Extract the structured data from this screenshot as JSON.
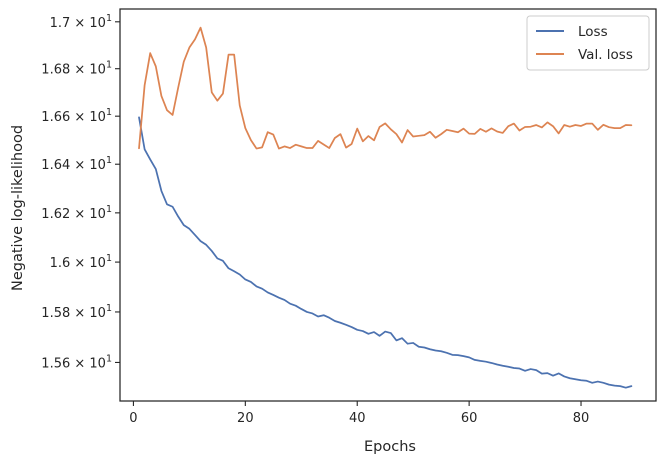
{
  "chart_data": {
    "type": "line",
    "xlabel": "Epochs",
    "ylabel": "Negative log-likelihood",
    "xlim": [
      -2.4,
      93.4
    ],
    "ylim": [
      15.449,
      17.055
    ],
    "yscale": "log",
    "grid": false,
    "legend_position": "top-right",
    "x_ticks": [
      {
        "value": 0,
        "label": "0"
      },
      {
        "value": 20,
        "label": "20"
      },
      {
        "value": 40,
        "label": "40"
      },
      {
        "value": 60,
        "label": "60"
      },
      {
        "value": 80,
        "label": "80"
      }
    ],
    "y_ticks": [
      {
        "value": 15.6,
        "mant": "1.56",
        "exp": "1"
      },
      {
        "value": 15.8,
        "mant": "1.58",
        "exp": "1"
      },
      {
        "value": 16.0,
        "mant": "1.6",
        "exp": "1"
      },
      {
        "value": 16.2,
        "mant": "1.62",
        "exp": "1"
      },
      {
        "value": 16.4,
        "mant": "1.64",
        "exp": "1"
      },
      {
        "value": 16.6,
        "mant": "1.66",
        "exp": "1"
      },
      {
        "value": 16.8,
        "mant": "1.68",
        "exp": "1"
      },
      {
        "value": 17.0,
        "mant": "1.7",
        "exp": "1"
      }
    ],
    "x": [
      1,
      2,
      3,
      4,
      5,
      6,
      7,
      8,
      9,
      10,
      11,
      12,
      13,
      14,
      15,
      16,
      17,
      18,
      19,
      20,
      21,
      22,
      23,
      24,
      25,
      26,
      27,
      28,
      29,
      30,
      31,
      32,
      33,
      34,
      35,
      36,
      37,
      38,
      39,
      40,
      41,
      42,
      43,
      44,
      45,
      46,
      47,
      48,
      49,
      50,
      51,
      52,
      53,
      54,
      55,
      56,
      57,
      58,
      59,
      60,
      61,
      62,
      63,
      64,
      65,
      66,
      67,
      68,
      69,
      70,
      71,
      72,
      73,
      74,
      75,
      76,
      77,
      78,
      79,
      80,
      81,
      82,
      83,
      84,
      85,
      86,
      87,
      88,
      89
    ],
    "series": [
      {
        "name": "Loss",
        "color": "#4c72b0",
        "values": [
          16.595,
          16.462,
          16.42,
          16.38,
          16.29,
          16.235,
          16.225,
          16.185,
          16.15,
          16.135,
          16.11,
          16.085,
          16.07,
          16.045,
          16.015,
          16.005,
          15.975,
          15.963,
          15.95,
          15.93,
          15.92,
          15.902,
          15.893,
          15.878,
          15.868,
          15.857,
          15.848,
          15.833,
          15.825,
          15.812,
          15.8,
          15.794,
          15.782,
          15.787,
          15.777,
          15.764,
          15.757,
          15.749,
          15.74,
          15.729,
          15.724,
          15.713,
          15.72,
          15.705,
          15.722,
          15.716,
          15.687,
          15.696,
          15.674,
          15.677,
          15.662,
          15.659,
          15.652,
          15.647,
          15.644,
          15.638,
          15.63,
          15.629,
          15.625,
          15.62,
          15.61,
          15.606,
          15.603,
          15.598,
          15.592,
          15.587,
          15.583,
          15.578,
          15.576,
          15.567,
          15.574,
          15.57,
          15.556,
          15.558,
          15.548,
          15.557,
          15.545,
          15.538,
          15.534,
          15.53,
          15.528,
          15.52,
          15.525,
          15.52,
          15.513,
          15.509,
          15.507,
          15.501,
          15.507
        ]
      },
      {
        "name": "Val. loss",
        "color": "#dd8452",
        "values": [
          16.466,
          16.73,
          16.866,
          16.81,
          16.685,
          16.625,
          16.605,
          16.72,
          16.83,
          16.89,
          16.925,
          16.975,
          16.89,
          16.7,
          16.665,
          16.695,
          16.86,
          16.86,
          16.645,
          16.55,
          16.5,
          16.465,
          16.47,
          16.533,
          16.523,
          16.465,
          16.474,
          16.467,
          16.481,
          16.474,
          16.467,
          16.467,
          16.497,
          16.482,
          16.467,
          16.509,
          16.525,
          16.469,
          16.484,
          16.548,
          16.495,
          16.517,
          16.499,
          16.555,
          16.57,
          16.545,
          16.525,
          16.49,
          16.542,
          16.515,
          16.518,
          16.521,
          16.535,
          16.51,
          16.525,
          16.543,
          16.538,
          16.533,
          16.548,
          16.527,
          16.526,
          16.547,
          16.535,
          16.549,
          16.536,
          16.53,
          16.558,
          16.569,
          16.54,
          16.555,
          16.556,
          16.563,
          16.553,
          16.574,
          16.558,
          16.528,
          16.563,
          16.556,
          16.563,
          16.559,
          16.569,
          16.569,
          16.543,
          16.564,
          16.554,
          16.55,
          16.55,
          16.563,
          16.562
        ]
      }
    ]
  }
}
